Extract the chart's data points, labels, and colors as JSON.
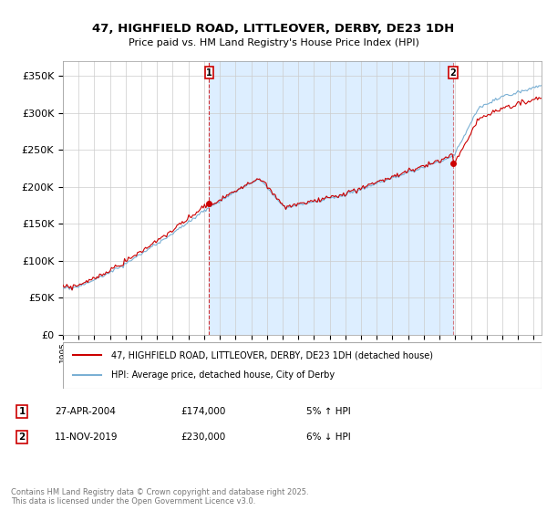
{
  "title_line1": "47, HIGHFIELD ROAD, LITTLEOVER, DERBY, DE23 1DH",
  "title_line2": "Price paid vs. HM Land Registry's House Price Index (HPI)",
  "ytick_labels": [
    "£0",
    "£50K",
    "£100K",
    "£150K",
    "£200K",
    "£250K",
    "£300K",
    "£350K"
  ],
  "ytick_values": [
    0,
    50000,
    100000,
    150000,
    200000,
    250000,
    300000,
    350000
  ],
  "ylim": [
    0,
    370000
  ],
  "legend_entry1": "47, HIGHFIELD ROAD, LITTLEOVER, DERBY, DE23 1DH (detached house)",
  "legend_entry2": "HPI: Average price, detached house, City of Derby",
  "marker1_date": "27-APR-2004",
  "marker1_price": 174000,
  "marker1_note": "5% ↑ HPI",
  "marker2_date": "11-NOV-2019",
  "marker2_price": 230000,
  "marker2_note": "6% ↓ HPI",
  "footnote": "Contains HM Land Registry data © Crown copyright and database right 2025.\nThis data is licensed under the Open Government Licence v3.0.",
  "line_color_house": "#cc0000",
  "line_color_hpi": "#7ab0d4",
  "shade_color": "#ddeeff",
  "background_color": "#ffffff",
  "grid_color": "#cccccc",
  "sale1_year": 2004.32,
  "sale2_year": 2019.86,
  "xlim_start": 1995.0,
  "xlim_end": 2025.5
}
